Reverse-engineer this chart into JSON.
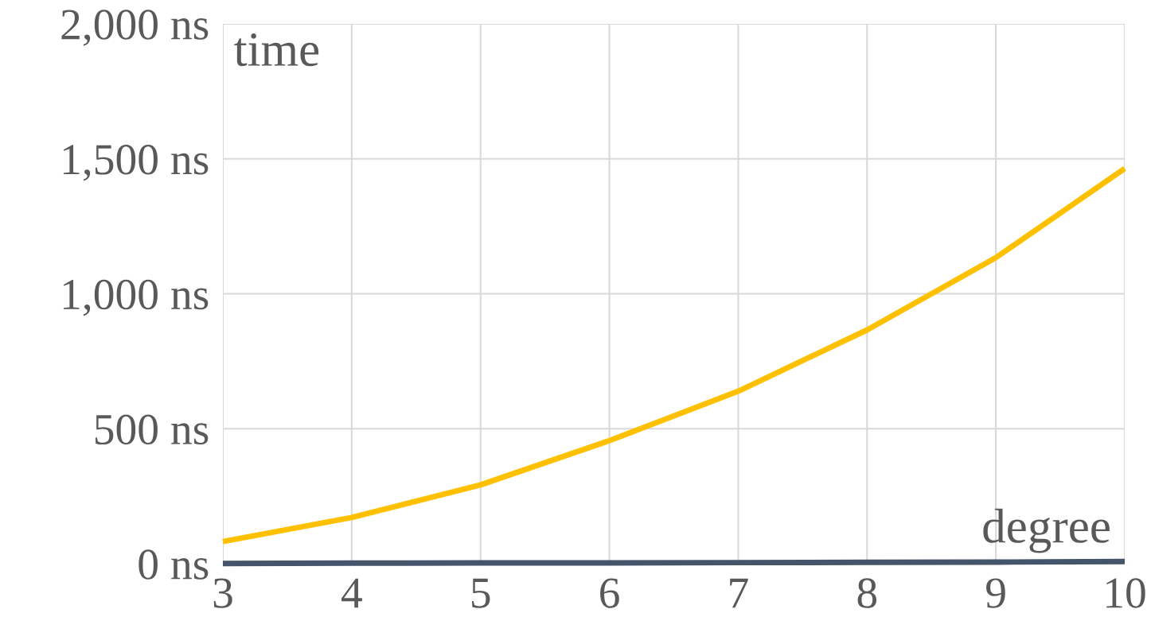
{
  "chart_data": {
    "type": "line",
    "xlabel": "degree",
    "ylabel": "time",
    "x": [
      3,
      4,
      5,
      6,
      7,
      8,
      9,
      10
    ],
    "series": [
      {
        "color": "#ffc000",
        "values": [
          82,
          171,
          292,
          456,
          639,
          866,
          1134,
          1464
        ]
      },
      {
        "color": "#44546a",
        "values": [
          1,
          2,
          3,
          3,
          4,
          5,
          6,
          8
        ]
      }
    ],
    "xlim": [
      3,
      10
    ],
    "xticks": [
      3,
      4,
      5,
      6,
      7,
      8,
      9,
      10
    ],
    "ylim": [
      0,
      2000
    ],
    "yticks": [
      {
        "value": 0,
        "label": "0 ns"
      },
      {
        "value": 500,
        "label": "500 ns"
      },
      {
        "value": 1000,
        "label": "1,000 ns"
      },
      {
        "value": 1500,
        "label": "1,500 ns"
      },
      {
        "value": 2000,
        "label": "2,000 ns"
      }
    ],
    "grid": true,
    "marker": "none",
    "line_style": "solid",
    "legend": false
  }
}
